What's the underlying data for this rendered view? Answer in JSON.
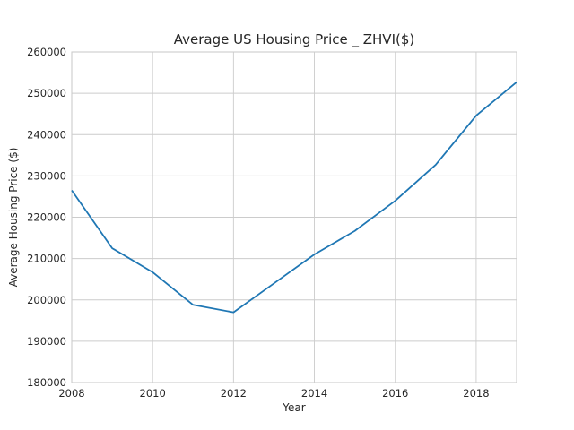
{
  "chart_data": {
    "type": "line",
    "title": "Average US Housing Price _ ZHVI($)",
    "xlabel": "Year",
    "ylabel": "Average Housing Price ($)",
    "xlim": [
      2008,
      2019
    ],
    "ylim": [
      180000,
      260000
    ],
    "x_ticks": [
      2008,
      2010,
      2012,
      2014,
      2016,
      2018
    ],
    "y_ticks": [
      180000,
      190000,
      200000,
      210000,
      220000,
      230000,
      240000,
      250000,
      260000
    ],
    "grid": true,
    "series": [
      {
        "color": "#1f77b4",
        "x": [
          2008,
          2009,
          2010,
          2011,
          2012,
          2013,
          2014,
          2015,
          2016,
          2017,
          2018,
          2019
        ],
        "y": [
          226500,
          212500,
          206700,
          198800,
          197000,
          204000,
          211000,
          216700,
          224000,
          232700,
          244600,
          252700
        ]
      }
    ]
  }
}
